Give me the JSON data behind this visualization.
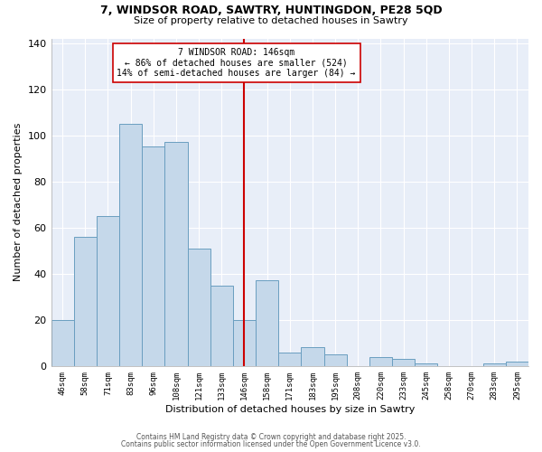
{
  "title_line1": "7, WINDSOR ROAD, SAWTRY, HUNTINGDON, PE28 5QD",
  "title_line2": "Size of property relative to detached houses in Sawtry",
  "xlabel": "Distribution of detached houses by size in Sawtry",
  "ylabel": "Number of detached properties",
  "bar_labels": [
    "46sqm",
    "58sqm",
    "71sqm",
    "83sqm",
    "96sqm",
    "108sqm",
    "121sqm",
    "133sqm",
    "146sqm",
    "158sqm",
    "171sqm",
    "183sqm",
    "195sqm",
    "208sqm",
    "220sqm",
    "233sqm",
    "245sqm",
    "258sqm",
    "270sqm",
    "283sqm",
    "295sqm"
  ],
  "bar_values": [
    20,
    56,
    65,
    105,
    95,
    97,
    51,
    35,
    20,
    37,
    6,
    8,
    5,
    0,
    4,
    3,
    1,
    0,
    0,
    1,
    2
  ],
  "bar_color": "#c5d8ea",
  "bar_edge_color": "#6a9ec0",
  "vline_index": 8,
  "vline_color": "#cc0000",
  "annotation_text": "7 WINDSOR ROAD: 146sqm\n← 86% of detached houses are smaller (524)\n14% of semi-detached houses are larger (84) →",
  "annotation_box_facecolor": "#ffffff",
  "annotation_box_edgecolor": "#cc0000",
  "ylim": [
    0,
    142
  ],
  "yticks": [
    0,
    20,
    40,
    60,
    80,
    100,
    120,
    140
  ],
  "footer_line1": "Contains HM Land Registry data © Crown copyright and database right 2025.",
  "footer_line2": "Contains public sector information licensed under the Open Government Licence v3.0.",
  "plot_bg_color": "#e8eef8",
  "fig_bg_color": "#ffffff",
  "grid_color": "#ffffff"
}
